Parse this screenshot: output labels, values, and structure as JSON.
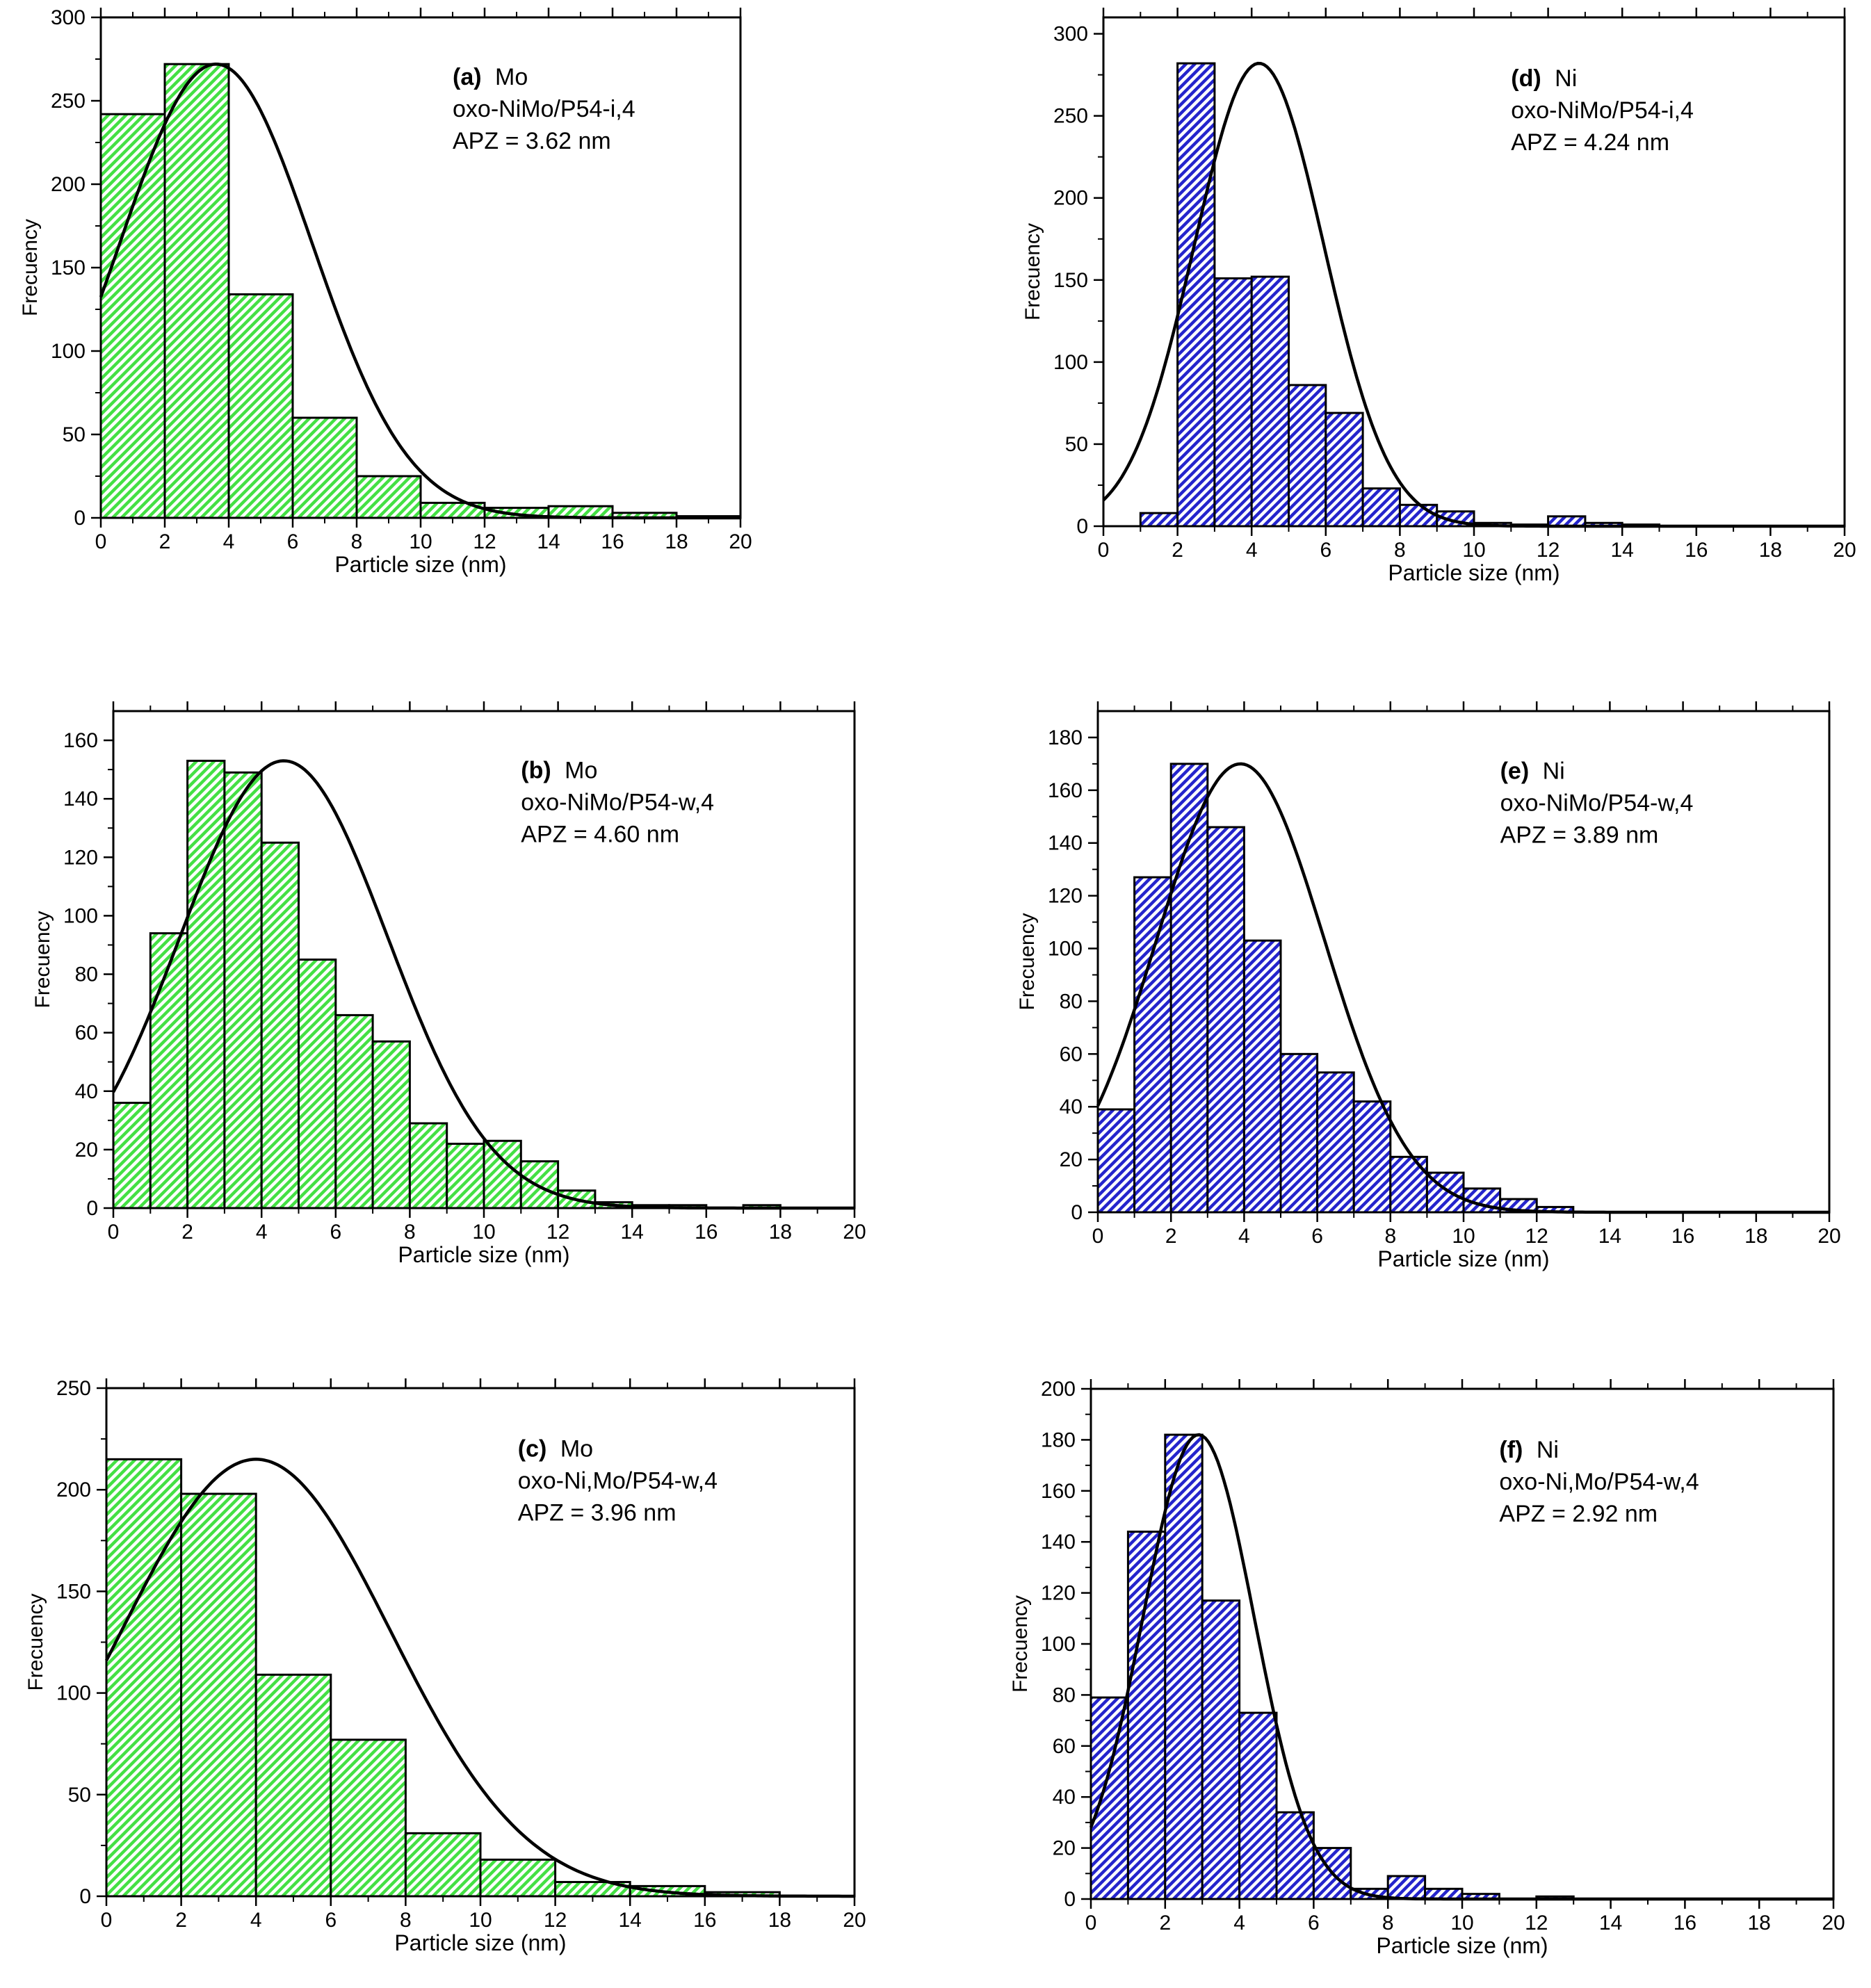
{
  "figure": {
    "colors": {
      "green": "#44e044",
      "blue": "#2424cc",
      "axis": "#000000"
    }
  },
  "chart_data": [
    {
      "type": "bar",
      "panel": "a",
      "tag": "(a)",
      "metal": "Mo",
      "sample": "oxo-NiMo/P54-i,4",
      "apz": "APZ = 3.62 nm",
      "title": "",
      "xlabel": "Particle size (nm)",
      "ylabel": "Frecuency",
      "xlim": [
        0,
        20
      ],
      "ylim": [
        0,
        300
      ],
      "xticks": [
        0,
        2,
        4,
        6,
        8,
        10,
        12,
        14,
        16,
        18,
        20
      ],
      "yticks": [
        0,
        50,
        100,
        150,
        200,
        250,
        300
      ],
      "color": "green",
      "bins": [
        {
          "x0": 0,
          "x1": 2,
          "count": 242
        },
        {
          "x0": 2,
          "x1": 4,
          "count": 272
        },
        {
          "x0": 4,
          "x1": 6,
          "count": 134
        },
        {
          "x0": 6,
          "x1": 8,
          "count": 60
        },
        {
          "x0": 8,
          "x1": 10,
          "count": 25
        },
        {
          "x0": 10,
          "x1": 12,
          "count": 9
        },
        {
          "x0": 12,
          "x1": 14,
          "count": 6
        },
        {
          "x0": 14,
          "x1": 16,
          "count": 7
        },
        {
          "x0": 16,
          "x1": 18,
          "count": 3
        },
        {
          "x0": 18,
          "x1": 20,
          "count": 1
        }
      ],
      "fit": {
        "type": "gaussian",
        "center": 3.6,
        "peak": 272,
        "sigma": 3.0
      }
    },
    {
      "type": "bar",
      "panel": "d",
      "tag": "(d)",
      "metal": "Ni",
      "sample": "oxo-NiMo/P54-i,4",
      "apz": "APZ = 4.24 nm",
      "title": "",
      "xlabel": "Particle size (nm)",
      "ylabel": "Frecuency",
      "xlim": [
        0,
        20
      ],
      "ylim": [
        0,
        310
      ],
      "xticks": [
        0,
        2,
        4,
        6,
        8,
        10,
        12,
        14,
        16,
        18,
        20
      ],
      "yticks": [
        0,
        50,
        100,
        150,
        200,
        250,
        300
      ],
      "color": "blue",
      "bins": [
        {
          "x0": 1,
          "x1": 2,
          "count": 8
        },
        {
          "x0": 2,
          "x1": 3,
          "count": 282
        },
        {
          "x0": 3,
          "x1": 4,
          "count": 151
        },
        {
          "x0": 4,
          "x1": 5,
          "count": 152
        },
        {
          "x0": 5,
          "x1": 6,
          "count": 86
        },
        {
          "x0": 6,
          "x1": 7,
          "count": 69
        },
        {
          "x0": 7,
          "x1": 8,
          "count": 23
        },
        {
          "x0": 8,
          "x1": 9,
          "count": 13
        },
        {
          "x0": 9,
          "x1": 10,
          "count": 9
        },
        {
          "x0": 10,
          "x1": 11,
          "count": 2
        },
        {
          "x0": 11,
          "x1": 12,
          "count": 1
        },
        {
          "x0": 12,
          "x1": 13,
          "count": 6
        },
        {
          "x0": 13,
          "x1": 14,
          "count": 2
        },
        {
          "x0": 14,
          "x1": 15,
          "count": 1
        }
      ],
      "fit": {
        "type": "gaussian",
        "center": 4.2,
        "peak": 282,
        "sigma": 1.75
      }
    },
    {
      "type": "bar",
      "panel": "b",
      "tag": "(b)",
      "metal": "Mo",
      "sample": "oxo-NiMo/P54-w,4",
      "apz": "APZ = 4.60 nm",
      "title": "",
      "xlabel": "Particle size (nm)",
      "ylabel": "Frecuency",
      "xlim": [
        0,
        20
      ],
      "ylim": [
        0,
        170
      ],
      "xticks": [
        0,
        2,
        4,
        6,
        8,
        10,
        12,
        14,
        16,
        18,
        20
      ],
      "yticks": [
        0,
        20,
        40,
        60,
        80,
        100,
        120,
        140,
        160
      ],
      "color": "green",
      "bins": [
        {
          "x0": 0,
          "x1": 1,
          "count": 36
        },
        {
          "x0": 1,
          "x1": 2,
          "count": 94
        },
        {
          "x0": 2,
          "x1": 3,
          "count": 153
        },
        {
          "x0": 3,
          "x1": 4,
          "count": 149
        },
        {
          "x0": 4,
          "x1": 5,
          "count": 125
        },
        {
          "x0": 5,
          "x1": 6,
          "count": 85
        },
        {
          "x0": 6,
          "x1": 7,
          "count": 66
        },
        {
          "x0": 7,
          "x1": 8,
          "count": 57
        },
        {
          "x0": 8,
          "x1": 9,
          "count": 29
        },
        {
          "x0": 9,
          "x1": 10,
          "count": 22
        },
        {
          "x0": 10,
          "x1": 11,
          "count": 23
        },
        {
          "x0": 11,
          "x1": 12,
          "count": 16
        },
        {
          "x0": 12,
          "x1": 13,
          "count": 6
        },
        {
          "x0": 13,
          "x1": 14,
          "count": 2
        },
        {
          "x0": 14,
          "x1": 15,
          "count": 1
        },
        {
          "x0": 15,
          "x1": 16,
          "count": 1
        },
        {
          "x0": 17,
          "x1": 18,
          "count": 1
        }
      ],
      "fit": {
        "type": "gaussian",
        "center": 4.6,
        "peak": 153,
        "sigma": 2.8
      }
    },
    {
      "type": "bar",
      "panel": "e",
      "tag": "(e)",
      "metal": "Ni",
      "sample": "oxo-NiMo/P54-w,4",
      "apz": "APZ = 3.89 nm",
      "title": "",
      "xlabel": "Particle size (nm)",
      "ylabel": "Frecuency",
      "xlim": [
        0,
        20
      ],
      "ylim": [
        0,
        190
      ],
      "xticks": [
        0,
        2,
        4,
        6,
        8,
        10,
        12,
        14,
        16,
        18,
        20
      ],
      "yticks": [
        0,
        20,
        40,
        60,
        80,
        100,
        120,
        140,
        160,
        180
      ],
      "color": "blue",
      "bins": [
        {
          "x0": 0,
          "x1": 1,
          "count": 39
        },
        {
          "x0": 1,
          "x1": 2,
          "count": 127
        },
        {
          "x0": 2,
          "x1": 3,
          "count": 170
        },
        {
          "x0": 3,
          "x1": 4,
          "count": 146
        },
        {
          "x0": 4,
          "x1": 5,
          "count": 103
        },
        {
          "x0": 5,
          "x1": 6,
          "count": 60
        },
        {
          "x0": 6,
          "x1": 7,
          "count": 53
        },
        {
          "x0": 7,
          "x1": 8,
          "count": 42
        },
        {
          "x0": 8,
          "x1": 9,
          "count": 21
        },
        {
          "x0": 9,
          "x1": 10,
          "count": 15
        },
        {
          "x0": 10,
          "x1": 11,
          "count": 9
        },
        {
          "x0": 11,
          "x1": 12,
          "count": 5
        },
        {
          "x0": 12,
          "x1": 13,
          "count": 2
        }
      ],
      "fit": {
        "type": "gaussian",
        "center": 3.9,
        "peak": 170,
        "sigma": 2.3
      }
    },
    {
      "type": "bar",
      "panel": "c",
      "tag": "(c)",
      "metal": "Mo",
      "sample": "oxo-Ni,Mo/P54-w,4",
      "apz": "APZ = 3.96 nm",
      "title": "",
      "xlabel": "Particle size (nm)",
      "ylabel": "Frecuency",
      "xlim": [
        0,
        20
      ],
      "ylim": [
        0,
        250
      ],
      "xticks": [
        0,
        2,
        4,
        6,
        8,
        10,
        12,
        14,
        16,
        18,
        20
      ],
      "yticks": [
        0,
        50,
        100,
        150,
        200,
        250
      ],
      "color": "green",
      "bins": [
        {
          "x0": 0,
          "x1": 2,
          "count": 215
        },
        {
          "x0": 2,
          "x1": 4,
          "count": 198
        },
        {
          "x0": 4,
          "x1": 6,
          "count": 109
        },
        {
          "x0": 6,
          "x1": 8,
          "count": 77
        },
        {
          "x0": 8,
          "x1": 10,
          "count": 31
        },
        {
          "x0": 10,
          "x1": 12,
          "count": 18
        },
        {
          "x0": 12,
          "x1": 14,
          "count": 7
        },
        {
          "x0": 14,
          "x1": 16,
          "count": 5
        },
        {
          "x0": 16,
          "x1": 18,
          "count": 2
        }
      ],
      "fit": {
        "type": "gaussian",
        "center": 4.0,
        "peak": 215,
        "sigma": 3.6
      }
    },
    {
      "type": "bar",
      "panel": "f",
      "tag": "(f)",
      "metal": "Ni",
      "sample": "oxo-Ni,Mo/P54-w,4",
      "apz": "APZ = 2.92 nm",
      "title": "",
      "xlabel": "Particle size (nm)",
      "ylabel": "Frecuency",
      "xlim": [
        0,
        20
      ],
      "ylim": [
        0,
        200
      ],
      "xticks": [
        0,
        2,
        4,
        6,
        8,
        10,
        12,
        14,
        16,
        18,
        20
      ],
      "yticks": [
        0,
        20,
        40,
        60,
        80,
        100,
        120,
        140,
        160,
        180,
        200
      ],
      "color": "blue",
      "bins": [
        {
          "x0": 0,
          "x1": 1,
          "count": 79
        },
        {
          "x0": 1,
          "x1": 2,
          "count": 144
        },
        {
          "x0": 2,
          "x1": 3,
          "count": 182
        },
        {
          "x0": 3,
          "x1": 4,
          "count": 117
        },
        {
          "x0": 4,
          "x1": 5,
          "count": 73
        },
        {
          "x0": 5,
          "x1": 6,
          "count": 34
        },
        {
          "x0": 6,
          "x1": 7,
          "count": 20
        },
        {
          "x0": 7,
          "x1": 8,
          "count": 4
        },
        {
          "x0": 8,
          "x1": 9,
          "count": 9
        },
        {
          "x0": 9,
          "x1": 10,
          "count": 4
        },
        {
          "x0": 10,
          "x1": 11,
          "count": 2
        },
        {
          "x0": 12,
          "x1": 13,
          "count": 1
        }
      ],
      "fit": {
        "type": "gaussian",
        "center": 2.9,
        "peak": 182,
        "sigma": 1.5
      }
    }
  ]
}
